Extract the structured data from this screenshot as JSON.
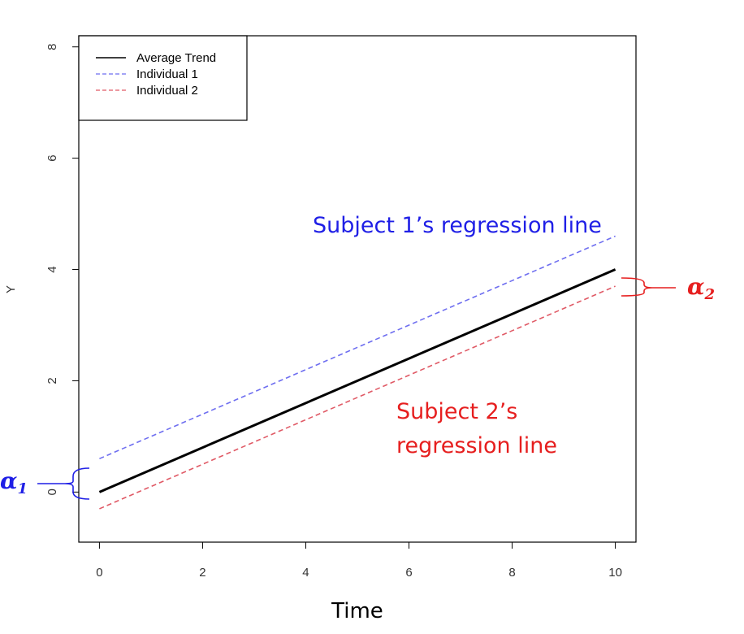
{
  "chart_data": {
    "type": "line",
    "title": "",
    "xlabel": "Time",
    "ylabel": "Y",
    "xlim": [
      -0.4,
      10.4
    ],
    "ylim": [
      -0.9,
      8.2
    ],
    "x_ticks": [
      0,
      2,
      4,
      6,
      8,
      10
    ],
    "y_ticks": [
      0,
      2,
      4,
      6,
      8
    ],
    "grid": false,
    "legend_position": "top-left",
    "series": [
      {
        "name": "Average Trend",
        "x": [
          0,
          10
        ],
        "y": [
          0.0,
          4.0
        ],
        "color": "#000000",
        "dash": "solid"
      },
      {
        "name": "Individual 1",
        "x": [
          0,
          10
        ],
        "y": [
          0.6,
          4.6
        ],
        "color": "#6e6ef0",
        "dash": "dashed"
      },
      {
        "name": "Individual 2",
        "x": [
          0,
          10
        ],
        "y": [
          -0.3,
          3.7
        ],
        "color": "#e05a66",
        "dash": "dashed"
      }
    ],
    "annotations": [
      {
        "id": "subject1",
        "lines": [
          "Subject 1’s regression line"
        ],
        "color": "#1f1fe6"
      },
      {
        "id": "subject2",
        "lines": [
          "Subject 2’s",
          "regression line"
        ],
        "color": "#e61f1f"
      },
      {
        "id": "alpha1",
        "symbol": "α",
        "subscript": "1",
        "color": "#1f1fe6"
      },
      {
        "id": "alpha2",
        "symbol": "α",
        "subscript": "2",
        "color": "#e61f1f"
      }
    ]
  }
}
